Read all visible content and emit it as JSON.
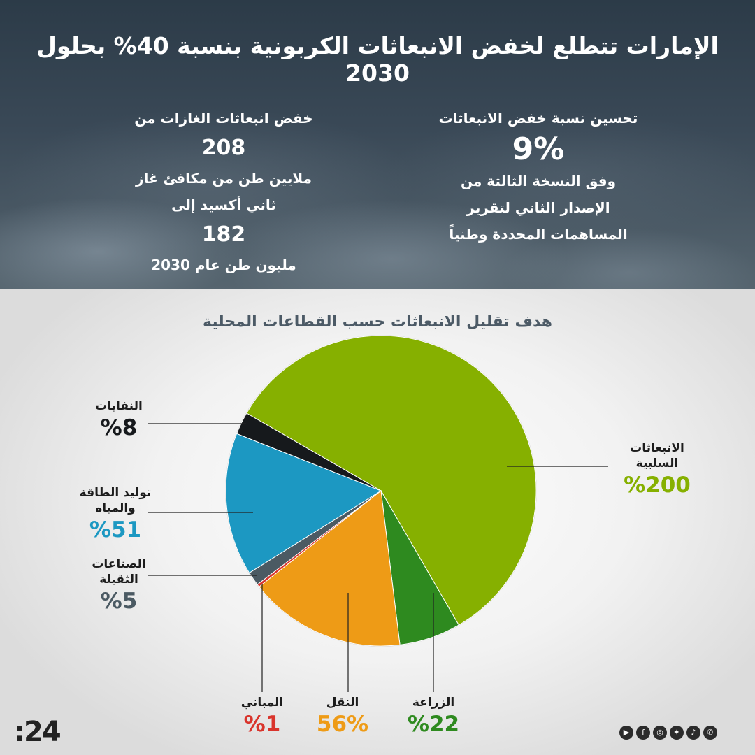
{
  "header": {
    "title": "الإمارات تتطلع لخفض الانبعاثات الكربونية بنسبة 40% بحلول 2030"
  },
  "stat_right": {
    "line1": "تحسين نسبة خفض الانبعاثات",
    "value": "9%",
    "line2": "وفق النسخة الثالثة من",
    "line3": "الإصدار الثاني لتقرير",
    "line4": "المساهمات المحددة وطنياً"
  },
  "stat_left": {
    "line1": "خفض انبعاثات الغازات من",
    "value1": "208",
    "line2": "ملايين طن من مكافئ غاز",
    "line3": "ثاني أكسيد إلى",
    "value2": "182",
    "line4": "مليون طن عام 2030"
  },
  "chart_data": {
    "type": "pie",
    "title": "هدف تقليل الانبعاثات حسب القطاعات المحلية",
    "slices": [
      {
        "label": "الانبعاثات السلبية",
        "value": 200,
        "value_label": "200%",
        "color": "#86b000"
      },
      {
        "label": "الزراعة",
        "value": 22,
        "value_label": "22%",
        "color": "#2e8a1f"
      },
      {
        "label": "النقل",
        "value": 56,
        "value_label": "56%",
        "color": "#ee9b16"
      },
      {
        "label": "المباني",
        "value": 1,
        "value_label": "1%",
        "color": "#d9342c"
      },
      {
        "label": "الصناعات الثقيلة",
        "value": 5,
        "value_label": "5%",
        "color": "#4b5a63"
      },
      {
        "label": "توليد الطاقة والمياه",
        "value": 51,
        "value_label": "51%",
        "color": "#1c98c2"
      },
      {
        "label": "النفايات",
        "value": 8,
        "value_label": "8%",
        "color": "#16191c"
      }
    ]
  },
  "labels": {
    "negative": {
      "line1": "الانبعاثات",
      "line2": "السلبية",
      "pct": "%200"
    },
    "agriculture": {
      "line1": "الزراعة",
      "pct": "%22"
    },
    "transport": {
      "line1": "النقل",
      "pct": "56%"
    },
    "buildings": {
      "line1": "المباني",
      "pct": "%1"
    },
    "industry": {
      "line1": "الصناعات",
      "line2": "الثقيلة",
      "pct": "%5"
    },
    "power": {
      "line1": "توليد الطاقة",
      "line2": "والمياه",
      "pct": "%51"
    },
    "waste": {
      "line1": "النفايات",
      "pct": "%8"
    }
  },
  "footer": {
    "brand": ":24",
    "social_icons": [
      "whatsapp-icon",
      "tiktok-icon",
      "twitter-icon",
      "instagram-icon",
      "facebook-icon",
      "youtube-icon"
    ]
  }
}
